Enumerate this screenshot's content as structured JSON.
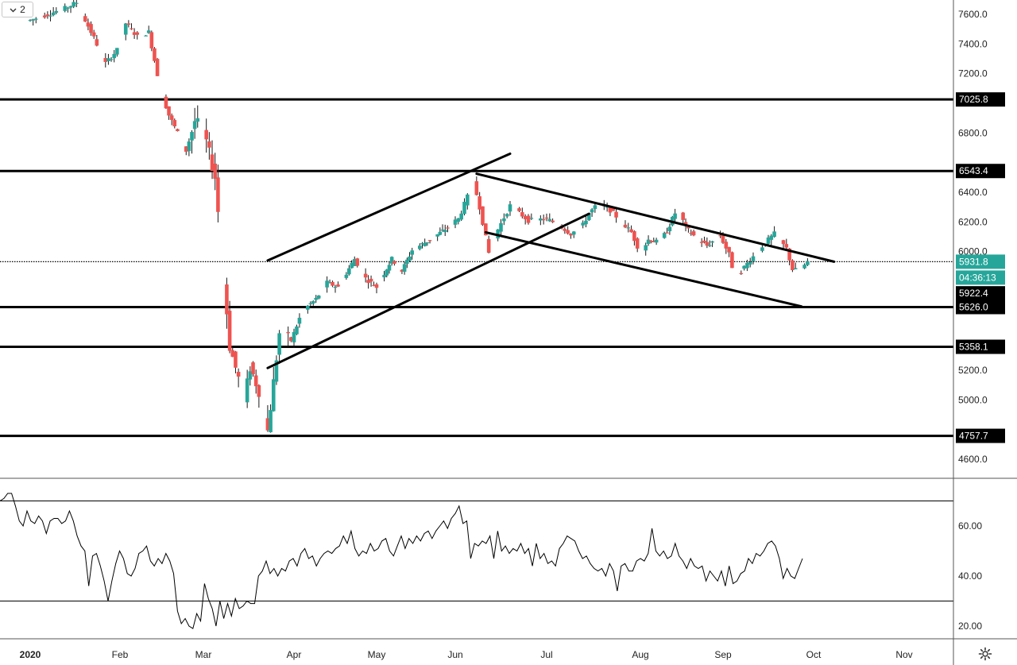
{
  "toolbar": {
    "interval_label": "2",
    "chevron_icon": "chevron-down-icon"
  },
  "footer": {
    "settings_icon": "gear-icon"
  },
  "chart_data": [
    {
      "type": "candlestick",
      "series": [
        {
          "name": "",
          "trend": "rise to 7680 in Jan, crash to low 4757.7 in mid-Mar, channel up to ~6543 in early Jun, descending channel to ~5932 by late Sep"
        }
      ],
      "ylim": [
        4480,
        7700
      ],
      "yticks": [
        4600,
        4800,
        5000,
        5200,
        5400,
        5600,
        5800,
        6000,
        6200,
        6400,
        6600,
        6800,
        7000,
        7200,
        7400,
        7600
      ],
      "ytick_labels": [
        "4600.0",
        "",
        "5000.0",
        "5200.0",
        "",
        "",
        "",
        "6000.0",
        "6200.0",
        "6400.0",
        "",
        "6800.0",
        "",
        "7200.0",
        "7400.0",
        "7600.0"
      ],
      "x_labels": [
        "2020",
        "Feb",
        "Mar",
        "Apr",
        "May",
        "Jun",
        "Jul",
        "Aug",
        "Sep",
        "Oct",
        "Nov"
      ],
      "horizontal_levels": [
        {
          "value": 7025.8,
          "label": "7025.8"
        },
        {
          "value": 6543.4,
          "label": "6543.4"
        },
        {
          "value": 5626.0,
          "label": "5626.0"
        },
        {
          "value": 5358.1,
          "label": "5358.1"
        },
        {
          "value": 4757.7,
          "label": "4757.7"
        }
      ],
      "current_price": {
        "value": 5931.8,
        "label": "5931.8",
        "countdown": "04:36:13",
        "color": "#26a69a"
      },
      "prev_close": {
        "value": 5922.4,
        "label": "5922.4"
      },
      "trendlines": [
        {
          "name": "channel-up-upper",
          "from": [
            "Mar 23",
            5940
          ],
          "to": [
            "Jun 19",
            6660
          ]
        },
        {
          "name": "channel-up-lower",
          "from": [
            "Mar 23",
            5215
          ],
          "to": [
            "Jul 15",
            6255
          ]
        },
        {
          "name": "channel-down-upper",
          "from": [
            "Jun 8",
            6525
          ],
          "to": [
            "Oct 8",
            5932
          ]
        },
        {
          "name": "channel-down-lower",
          "from": [
            "Jun 11",
            6130
          ],
          "to": [
            "Sep 27",
            5630
          ]
        }
      ],
      "colors": {
        "up": "#26a69a",
        "down": "#ef5350",
        "lines": "#000000"
      }
    },
    {
      "type": "line",
      "series": [
        {
          "name": ""
        }
      ],
      "ylim": [
        15,
        78
      ],
      "yticks": [
        20,
        40,
        60
      ],
      "ytick_labels": [
        "20.00",
        "40.00",
        "60.00"
      ],
      "levels": [
        30,
        70
      ],
      "values": [
        70,
        71,
        73,
        73,
        68,
        62,
        60,
        66,
        62,
        61,
        64,
        62,
        57,
        62,
        63,
        63,
        61,
        62,
        66,
        62,
        56,
        52,
        50,
        36,
        48,
        49,
        44,
        38,
        30,
        38,
        45,
        50,
        47,
        41,
        40,
        43,
        49,
        50,
        52,
        46,
        44,
        47,
        45,
        49,
        46,
        41,
        26,
        21,
        23,
        20,
        19,
        25,
        22,
        37,
        31,
        27,
        20,
        30,
        23,
        29,
        24,
        31,
        27,
        28,
        30,
        29,
        29,
        40,
        42,
        46,
        41,
        43,
        40,
        43,
        42,
        46,
        47,
        44,
        49,
        51,
        47,
        48,
        44,
        47,
        49,
        50,
        49,
        51,
        52,
        56,
        53,
        58,
        51,
        48,
        50,
        49,
        53,
        50,
        51,
        54,
        55,
        50,
        48,
        52,
        56,
        51,
        55,
        53,
        56,
        54,
        57,
        58,
        55,
        58,
        60,
        62,
        59,
        63,
        65,
        68,
        61,
        62,
        47,
        53,
        52,
        54,
        53,
        56,
        47,
        58,
        50,
        52,
        49,
        51,
        50,
        53,
        49,
        51,
        44,
        53,
        47,
        49,
        45,
        46,
        44,
        51,
        53,
        56,
        55,
        54,
        50,
        47,
        48,
        45,
        43,
        42,
        43,
        40,
        45,
        42,
        34,
        44,
        45,
        42,
        42,
        46,
        47,
        46,
        49,
        59,
        50,
        48,
        50,
        47,
        48,
        53,
        48,
        46,
        43,
        47,
        44,
        43,
        44,
        38,
        42,
        40,
        38,
        42,
        36,
        44,
        37,
        38,
        41,
        42,
        47,
        45,
        49,
        48,
        50,
        53,
        54,
        52,
        47,
        39,
        43,
        40,
        39,
        43,
        47
      ],
      "colors": {
        "line": "#000000"
      }
    }
  ]
}
